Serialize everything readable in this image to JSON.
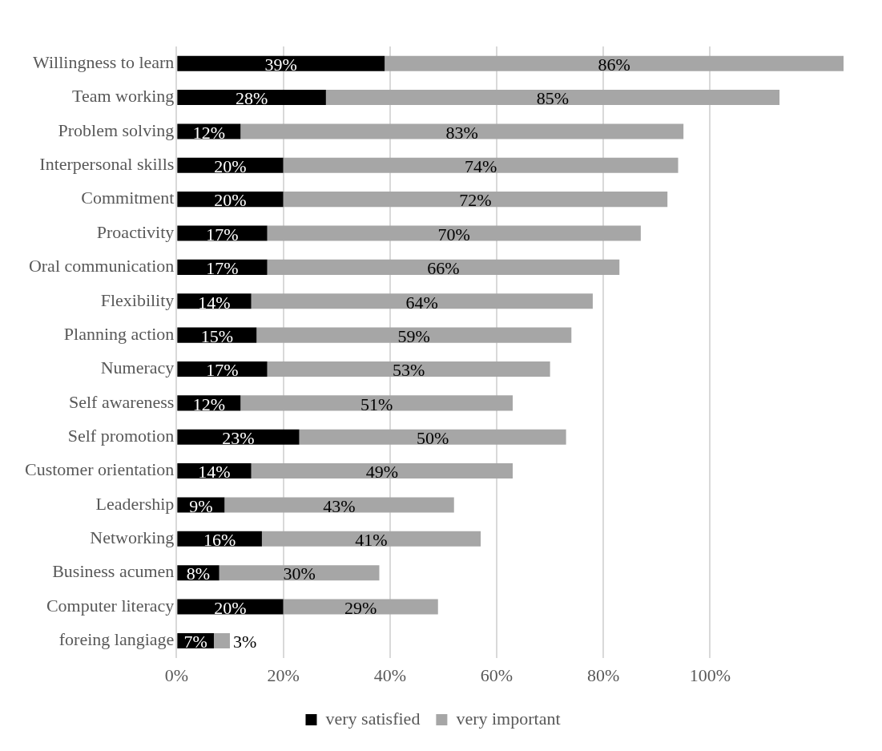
{
  "chart_data": {
    "type": "bar",
    "orientation": "horizontal",
    "stacked": true,
    "categories": [
      "Willingness to learn",
      "Team working",
      "Problem solving",
      "Interpersonal skills",
      "Commitment",
      "Proactivity",
      "Oral communication",
      "Flexibility",
      "Planning action",
      "Numeracy",
      "Self awareness",
      "Self promotion",
      "Customer orientation",
      "Leadership",
      "Networking",
      "Business acumen",
      "Computer literacy",
      "foreing langiage"
    ],
    "series": [
      {
        "name": "very satisfied",
        "color": "#000000",
        "values": [
          39,
          28,
          12,
          20,
          20,
          17,
          17,
          14,
          15,
          17,
          12,
          23,
          14,
          9,
          16,
          8,
          20,
          7
        ],
        "value_labels": [
          "39%",
          "28%",
          "12%",
          "20%",
          "20%",
          "17%",
          "17%",
          "14%",
          "15%",
          "17%",
          "12%",
          "23%",
          "14%",
          "9%",
          "16%",
          "8%",
          "20%",
          "7%"
        ]
      },
      {
        "name": "very important",
        "color": "#a6a6a6",
        "values": [
          86,
          85,
          83,
          74,
          72,
          70,
          66,
          64,
          59,
          53,
          51,
          50,
          49,
          43,
          41,
          30,
          29,
          3
        ],
        "value_labels": [
          "86%",
          "85%",
          "83%",
          "74%",
          "72%",
          "70%",
          "66%",
          "64%",
          "59%",
          "53%",
          "51%",
          "50%",
          "49%",
          "43%",
          "41%",
          "30%",
          "29%",
          "3%"
        ]
      }
    ],
    "xlim": [
      0,
      125
    ],
    "xticks": [
      {
        "value": 0,
        "label": "0%"
      },
      {
        "value": 20,
        "label": "20%"
      },
      {
        "value": 40,
        "label": "40%"
      },
      {
        "value": 60,
        "label": "60%"
      },
      {
        "value": 80,
        "label": "80%"
      },
      {
        "value": 100,
        "label": "100%"
      }
    ],
    "grid": "x",
    "legend": "bottom"
  }
}
